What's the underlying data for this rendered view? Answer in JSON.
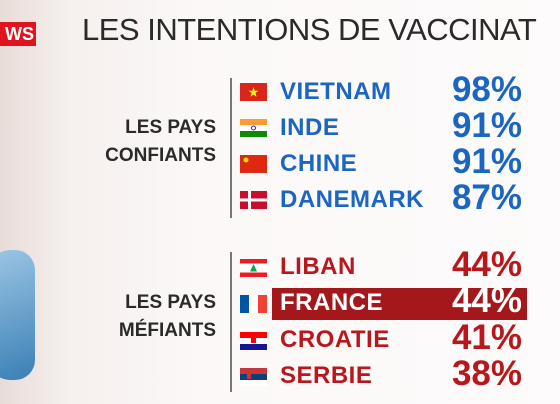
{
  "logo": "WS",
  "title": "LES INTENTIONS DE VACCINAT",
  "groups": [
    {
      "label": [
        "LES PAYS",
        "CONFIANTS"
      ],
      "rows": [
        {
          "country": "VIETNAM",
          "value": "98%"
        },
        {
          "country": "INDE",
          "value": "91%"
        },
        {
          "country": "CHINE",
          "value": "91%"
        },
        {
          "country": "DANEMARK",
          "value": "87%"
        }
      ]
    },
    {
      "label": [
        "LES PAYS",
        "MÉFIANTS"
      ],
      "rows": [
        {
          "country": "LIBAN",
          "value": "44%"
        },
        {
          "country": "FRANCE",
          "value": "44%"
        },
        {
          "country": "CROATIE",
          "value": "41%"
        },
        {
          "country": "SERBIE",
          "value": "38%"
        }
      ]
    }
  ]
}
